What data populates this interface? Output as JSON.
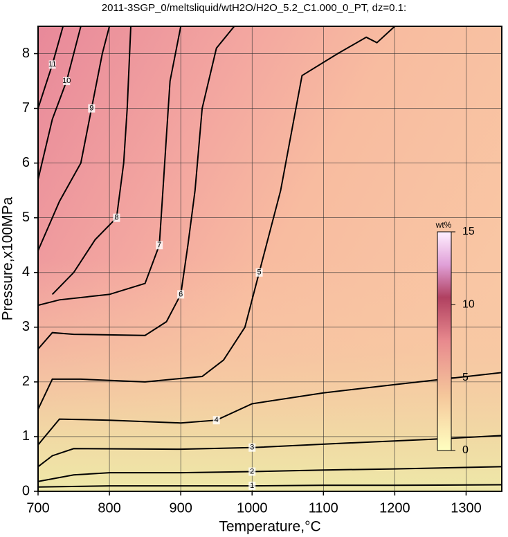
{
  "chart_data": {
    "type": "contour",
    "title": "2011-3SGP_0/meltsliquid/wtH2O/H2O_5.2_C1.000_0_PT, dz=0.1:",
    "x_label": "Temperature,°C",
    "y_label": "Pressure,x100MPa",
    "xlim": [
      700,
      1350
    ],
    "ylim": [
      0,
      8.5
    ],
    "xticks": [
      700,
      800,
      900,
      1000,
      1100,
      1200,
      1300
    ],
    "yticks": [
      0,
      1,
      2,
      3,
      4,
      5,
      6,
      7,
      8
    ],
    "grid": true,
    "colorbar": {
      "label": "wt%",
      "zlim": [
        0,
        15
      ],
      "ticks": [
        0,
        5,
        10,
        15
      ]
    },
    "contours": [
      {
        "level": 1,
        "x": [
          700,
          800,
          900,
          1000,
          1100,
          1200,
          1350
        ],
        "y": [
          0.08,
          0.1,
          0.1,
          0.1,
          0.11,
          0.11,
          0.12
        ]
      },
      {
        "level": 2,
        "x": [
          700,
          750,
          800,
          900,
          1000,
          1100,
          1200,
          1350
        ],
        "y": [
          0.18,
          0.3,
          0.34,
          0.34,
          0.36,
          0.39,
          0.41,
          0.45
        ]
      },
      {
        "level": 3,
        "x": [
          700,
          720,
          750,
          900,
          1000,
          1130,
          1250,
          1350
        ],
        "y": [
          0.45,
          0.65,
          0.78,
          0.77,
          0.8,
          0.88,
          0.95,
          1.02
        ]
      },
      {
        "level": 4,
        "x": [
          700,
          730,
          800,
          900,
          950,
          1000,
          1100,
          1200,
          1350
        ],
        "y": [
          0.85,
          1.32,
          1.3,
          1.25,
          1.3,
          1.6,
          1.8,
          1.95,
          2.17
        ]
      },
      {
        "level": 5,
        "x": [
          700,
          720,
          760,
          850,
          930,
          960,
          990,
          1010,
          1040,
          1070,
          1120,
          1160,
          1175,
          1200
        ],
        "y": [
          1.5,
          2.05,
          2.05,
          2.0,
          2.1,
          2.4,
          3.0,
          4.0,
          5.5,
          7.6,
          8.0,
          8.3,
          8.2,
          8.5
        ]
      },
      {
        "level": 6,
        "x": [
          700,
          720,
          750,
          850,
          880,
          900,
          910,
          920,
          930,
          950,
          975
        ],
        "y": [
          2.6,
          2.9,
          2.87,
          2.85,
          3.1,
          3.6,
          4.5,
          5.5,
          7.0,
          8.1,
          8.5
        ]
      },
      {
        "level": 7,
        "x": [
          700,
          730,
          800,
          850,
          870,
          875,
          880,
          885,
          900
        ],
        "y": [
          3.4,
          3.5,
          3.6,
          3.8,
          4.5,
          5.5,
          6.5,
          7.5,
          8.5
        ]
      },
      {
        "level": 8,
        "x": [
          720,
          750,
          780,
          810,
          820,
          825,
          830
        ],
        "y": [
          3.6,
          4.0,
          4.6,
          5.0,
          6.0,
          7.0,
          8.5
        ]
      },
      {
        "level": 9,
        "x": [
          700,
          730,
          760,
          775,
          790,
          800
        ],
        "y": [
          4.4,
          5.3,
          6.0,
          7.0,
          8.0,
          8.5
        ]
      },
      {
        "level": 10,
        "x": [
          700,
          720,
          740,
          760
        ],
        "y": [
          5.7,
          6.8,
          7.5,
          8.5
        ]
      },
      {
        "level": 11,
        "x": [
          700,
          720,
          735
        ],
        "y": [
          7.0,
          7.8,
          8.5
        ]
      }
    ]
  }
}
